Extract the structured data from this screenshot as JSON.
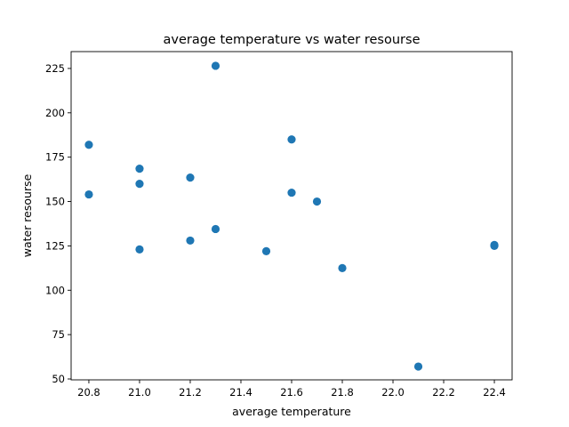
{
  "chart_data": {
    "type": "scatter",
    "title": "average temperature vs water resourse",
    "xlabel": "average temperature",
    "ylabel": "water resourse",
    "xlim": [
      20.73,
      22.47
    ],
    "ylim": [
      49.5,
      234.5
    ],
    "xticks": [
      "20.8",
      "21.0",
      "21.2",
      "21.4",
      "21.6",
      "21.8",
      "22.0",
      "22.2",
      "22.4"
    ],
    "yticks": [
      "50",
      "75",
      "100",
      "125",
      "150",
      "175",
      "200",
      "225"
    ],
    "grid": false,
    "marker_color": "#1f77b4",
    "points": [
      {
        "x": 20.8,
        "y": 182
      },
      {
        "x": 20.8,
        "y": 154
      },
      {
        "x": 21.0,
        "y": 168.5
      },
      {
        "x": 21.0,
        "y": 160
      },
      {
        "x": 21.0,
        "y": 123
      },
      {
        "x": 21.2,
        "y": 163.5
      },
      {
        "x": 21.2,
        "y": 128
      },
      {
        "x": 21.3,
        "y": 226.5
      },
      {
        "x": 21.3,
        "y": 134.5
      },
      {
        "x": 21.5,
        "y": 122
      },
      {
        "x": 21.6,
        "y": 185
      },
      {
        "x": 21.6,
        "y": 155
      },
      {
        "x": 21.7,
        "y": 150
      },
      {
        "x": 21.8,
        "y": 112.5
      },
      {
        "x": 22.1,
        "y": 57
      },
      {
        "x": 22.4,
        "y": 125.5
      },
      {
        "x": 22.4,
        "y": 125
      }
    ]
  }
}
